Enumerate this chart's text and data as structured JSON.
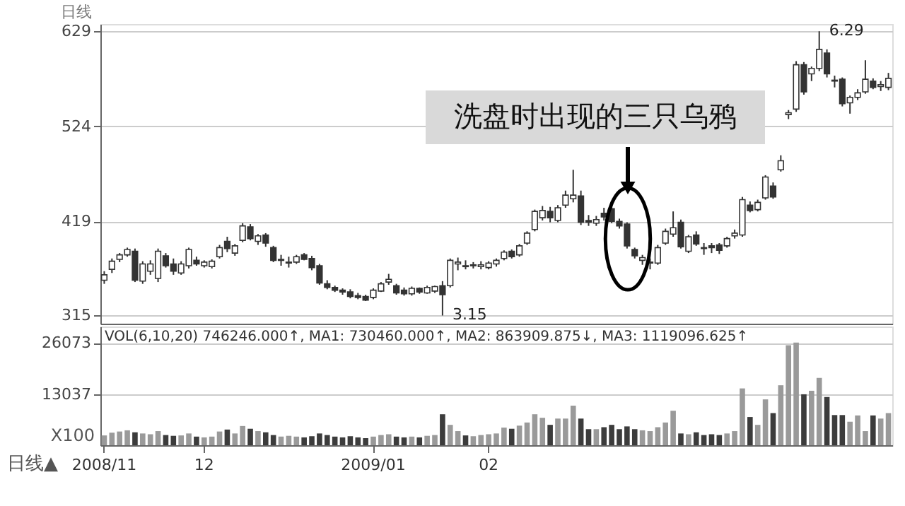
{
  "chart_data": [
    {
      "type": "candlestick",
      "title": "日线",
      "categories": [
        null,
        null,
        null,
        null,
        null,
        null,
        null,
        null,
        null,
        null,
        null,
        null,
        null,
        null,
        null,
        null,
        null,
        null,
        null,
        null,
        null,
        null,
        null,
        null,
        null,
        null,
        null,
        null,
        null,
        null,
        null,
        null,
        null,
        null,
        null,
        null,
        null,
        null,
        null,
        null,
        null,
        null,
        null,
        null,
        null,
        null,
        null,
        null,
        null,
        null,
        null,
        null,
        null,
        null,
        null,
        null,
        null,
        null,
        null,
        null,
        null,
        null,
        null,
        null,
        null,
        null,
        null,
        null,
        null,
        null,
        null,
        null,
        null,
        null,
        null,
        null,
        null,
        null,
        null,
        null,
        null,
        null,
        null,
        null,
        null,
        null,
        null,
        null,
        null,
        null,
        null,
        null,
        null,
        null,
        null,
        null,
        null,
        null,
        null,
        null,
        null,
        null,
        null
      ],
      "ohlc": [
        [
          354,
          364,
          350,
          360
        ],
        [
          366,
          378,
          362,
          375
        ],
        [
          377,
          384,
          374,
          382
        ],
        [
          382,
          390,
          380,
          388
        ],
        [
          386,
          389,
          352,
          354
        ],
        [
          353,
          375,
          350,
          372
        ],
        [
          364,
          376,
          360,
          372
        ],
        [
          356,
          389,
          352,
          386
        ],
        [
          381,
          384,
          368,
          370
        ],
        [
          372,
          378,
          360,
          364
        ],
        [
          362,
          375,
          360,
          372
        ],
        [
          370,
          390,
          367,
          388
        ],
        [
          376,
          380,
          370,
          372
        ],
        [
          370,
          376,
          368,
          374
        ],
        [
          369,
          377,
          367,
          375
        ],
        [
          380,
          393,
          378,
          390
        ],
        [
          397,
          402,
          385,
          389
        ],
        [
          384,
          394,
          381,
          392
        ],
        [
          398,
          417,
          396,
          414
        ],
        [
          413,
          416,
          398,
          400
        ],
        [
          397,
          405,
          393,
          403
        ],
        [
          404,
          406,
          391,
          395
        ],
        [
          390,
          392,
          374,
          376
        ],
        [
          376,
          382,
          370,
          377
        ],
        [
          373,
          380,
          368,
          374
        ],
        [
          374,
          382,
          372,
          380
        ],
        [
          382,
          384,
          376,
          377
        ],
        [
          378,
          381,
          365,
          368
        ],
        [
          370,
          372,
          349,
          351
        ],
        [
          350,
          354,
          344,
          346
        ],
        [
          346,
          348,
          341,
          343
        ],
        [
          343,
          345,
          338,
          341
        ],
        [
          341,
          344,
          334,
          336
        ],
        [
          337,
          340,
          333,
          335
        ],
        [
          336,
          338,
          331,
          332
        ],
        [
          335,
          345,
          333,
          343
        ],
        [
          342,
          352,
          341,
          350
        ],
        [
          352,
          361,
          349,
          355
        ],
        [
          348,
          350,
          338,
          340
        ],
        [
          343,
          346,
          337,
          339
        ],
        [
          339,
          347,
          337,
          345
        ],
        [
          345,
          346,
          339,
          341
        ],
        [
          340,
          348,
          339,
          346
        ],
        [
          342,
          348,
          340,
          347
        ],
        [
          348,
          353,
          315,
          338
        ],
        [
          348,
          378,
          346,
          376
        ],
        [
          372,
          379,
          365,
          374
        ],
        [
          370,
          376,
          366,
          369
        ],
        [
          370,
          374,
          367,
          371
        ],
        [
          369,
          375,
          366,
          371
        ],
        [
          368,
          375,
          366,
          373
        ],
        [
          372,
          378,
          369,
          376
        ],
        [
          378,
          387,
          376,
          385
        ],
        [
          386,
          388,
          378,
          380
        ],
        [
          382,
          394,
          380,
          392
        ],
        [
          395,
          408,
          393,
          406
        ],
        [
          410,
          432,
          408,
          430
        ],
        [
          423,
          436,
          420,
          431
        ],
        [
          430,
          435,
          418,
          423
        ],
        [
          420,
          437,
          418,
          434
        ],
        [
          437,
          453,
          434,
          448
        ],
        [
          444,
          476,
          440,
          448
        ],
        [
          447,
          453,
          415,
          418
        ],
        [
          420,
          426,
          414,
          418
        ],
        [
          417,
          425,
          414,
          421
        ],
        [
          428,
          434,
          420,
          424
        ],
        [
          433,
          436,
          417,
          419
        ],
        [
          419,
          422,
          411,
          414
        ],
        [
          416,
          418,
          389,
          392
        ],
        [
          388,
          390,
          378,
          381
        ],
        [
          376,
          382,
          371,
          379
        ],
        [
          373,
          378,
          366,
          374
        ],
        [
          373,
          393,
          371,
          390
        ],
        [
          395,
          411,
          393,
          408
        ],
        [
          405,
          430,
          402,
          412
        ],
        [
          418,
          421,
          389,
          391
        ],
        [
          386,
          404,
          384,
          402
        ],
        [
          404,
          408,
          392,
          394
        ],
        [
          390,
          395,
          382,
          389
        ],
        [
          392,
          395,
          384,
          390
        ],
        [
          393,
          395,
          383,
          387
        ],
        [
          392,
          402,
          390,
          400
        ],
        [
          403,
          410,
          400,
          406
        ],
        [
          404,
          446,
          402,
          443
        ],
        [
          437,
          441,
          429,
          431
        ],
        [
          432,
          443,
          430,
          440
        ],
        [
          445,
          470,
          443,
          468
        ],
        [
          458,
          462,
          444,
          446
        ],
        [
          476,
          492,
          474,
          486
        ],
        [
          537,
          542,
          532,
          539
        ],
        [
          543,
          596,
          540,
          592
        ],
        [
          592,
          595,
          559,
          562
        ],
        [
          582,
          590,
          574,
          588
        ],
        [
          588,
          629,
          585,
          609
        ],
        [
          605,
          609,
          578,
          582
        ],
        [
          575,
          580,
          567,
          574
        ],
        [
          576,
          578,
          546,
          549
        ],
        [
          550,
          558,
          538,
          556
        ],
        [
          556,
          565,
          553,
          561
        ],
        [
          562,
          597,
          560,
          576
        ],
        [
          574,
          577,
          565,
          567
        ],
        [
          568,
          574,
          563,
          570
        ],
        [
          567,
          583,
          564,
          577
        ]
      ],
      "color": "#333333",
      "ylim": [
        306,
        637
      ],
      "yticks": [
        315,
        419,
        524,
        629
      ],
      "grid": "y",
      "tick_labels": "y",
      "annotations": [
        "洗盘时出现的三只乌鸦",
        "3.15",
        "6.29"
      ]
    },
    {
      "type": "bar",
      "title": "VOL(6,10,20) 746246.000↑, MA1: 730460.000↑, MA2: 863909.875↓, MA3: 1119096.625↑",
      "categories": [
        "2008/11",
        null,
        null,
        null,
        null,
        null,
        null,
        null,
        null,
        null,
        null,
        null,
        null,
        "12",
        null,
        null,
        null,
        null,
        null,
        null,
        null,
        null,
        null,
        null,
        null,
        null,
        null,
        null,
        null,
        null,
        null,
        null,
        null,
        null,
        null,
        "2009/01",
        null,
        null,
        null,
        null,
        null,
        null,
        null,
        null,
        null,
        null,
        null,
        null,
        null,
        null,
        "02",
        null,
        null,
        null,
        null,
        null,
        null,
        null,
        null,
        null,
        null,
        null,
        null,
        null,
        null,
        null,
        null,
        null,
        null,
        null,
        null,
        null,
        null,
        null,
        null,
        null,
        null,
        null,
        null,
        null,
        null,
        null,
        null,
        null,
        null,
        null,
        null,
        null,
        null,
        null,
        null,
        null,
        null,
        null,
        null,
        null,
        null,
        null,
        null,
        null,
        null,
        null,
        null
      ],
      "values": [
        2500,
        3200,
        3500,
        3800,
        3300,
        3000,
        2800,
        3600,
        2600,
        2400,
        2500,
        3000,
        2200,
        2000,
        2200,
        3500,
        4000,
        3000,
        4900,
        4200,
        3600,
        3300,
        2600,
        2200,
        2400,
        2200,
        2000,
        2300,
        3000,
        2600,
        2200,
        2000,
        2300,
        2000,
        1800,
        2200,
        2600,
        2800,
        2200,
        2000,
        2200,
        2000,
        2400,
        2600,
        7900,
        5200,
        3600,
        2500,
        2300,
        2600,
        2800,
        3000,
        4500,
        4200,
        5000,
        5800,
        7900,
        7000,
        5200,
        6800,
        6800,
        10100,
        6800,
        4100,
        4100,
        4600,
        5200,
        4100,
        4800,
        4100,
        3800,
        3600,
        4600,
        5800,
        8800,
        3000,
        2800,
        3300,
        2600,
        2800,
        2600,
        3000,
        3600,
        14500,
        7200,
        5200,
        11700,
        8200,
        15300,
        25500,
        26200,
        13000,
        13900,
        17200,
        12300,
        7700,
        7700,
        6000,
        7600,
        3600,
        7600,
        6800,
        8200
      ],
      "colors": [
        "#9a9a9a",
        "#9a9a9a",
        "#9a9a9a",
        "#9a9a9a",
        "#3c3c3c",
        "#9a9a9a",
        "#9a9a9a",
        "#9a9a9a",
        "#3c3c3c",
        "#3c3c3c",
        "#9a9a9a",
        "#9a9a9a",
        "#3c3c3c",
        "#9a9a9a",
        "#9a9a9a",
        "#9a9a9a",
        "#3c3c3c",
        "#9a9a9a",
        "#9a9a9a",
        "#3c3c3c",
        "#9a9a9a",
        "#3c3c3c",
        "#3c3c3c",
        "#9a9a9a",
        "#9a9a9a",
        "#9a9a9a",
        "#3c3c3c",
        "#3c3c3c",
        "#3c3c3c",
        "#3c3c3c",
        "#3c3c3c",
        "#3c3c3c",
        "#3c3c3c",
        "#3c3c3c",
        "#3c3c3c",
        "#9a9a9a",
        "#9a9a9a",
        "#9a9a9a",
        "#3c3c3c",
        "#3c3c3c",
        "#9a9a9a",
        "#3c3c3c",
        "#9a9a9a",
        "#9a9a9a",
        "#3c3c3c",
        "#9a9a9a",
        "#9a9a9a",
        "#3c3c3c",
        "#9a9a9a",
        "#9a9a9a",
        "#9a9a9a",
        "#9a9a9a",
        "#9a9a9a",
        "#3c3c3c",
        "#9a9a9a",
        "#9a9a9a",
        "#9a9a9a",
        "#9a9a9a",
        "#3c3c3c",
        "#9a9a9a",
        "#9a9a9a",
        "#9a9a9a",
        "#3c3c3c",
        "#3c3c3c",
        "#9a9a9a",
        "#3c3c3c",
        "#3c3c3c",
        "#3c3c3c",
        "#3c3c3c",
        "#3c3c3c",
        "#9a9a9a",
        "#9a9a9a",
        "#9a9a9a",
        "#9a9a9a",
        "#9a9a9a",
        "#3c3c3c",
        "#9a9a9a",
        "#3c3c3c",
        "#3c3c3c",
        "#3c3c3c",
        "#3c3c3c",
        "#9a9a9a",
        "#9a9a9a",
        "#9a9a9a",
        "#3c3c3c",
        "#9a9a9a",
        "#9a9a9a",
        "#3c3c3c",
        "#9a9a9a",
        "#9a9a9a",
        "#9a9a9a",
        "#3c3c3c",
        "#9a9a9a",
        "#9a9a9a",
        "#3c3c3c",
        "#3c3c3c",
        "#3c3c3c",
        "#9a9a9a",
        "#9a9a9a",
        "#9a9a9a",
        "#3c3c3c",
        "#9a9a9a",
        "#9a9a9a"
      ],
      "ylim": [
        0,
        30300
      ],
      "yticks": [
        13037,
        26073
      ],
      "grid": "y",
      "annotations": [
        "X100",
        "日线▲"
      ]
    }
  ]
}
